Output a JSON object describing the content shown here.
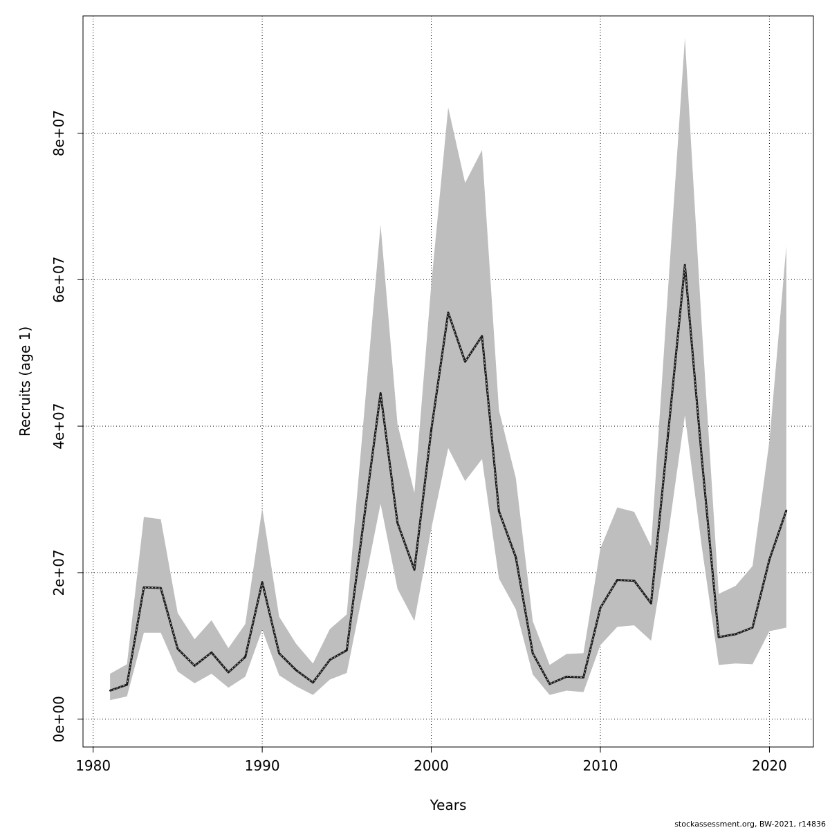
{
  "chart_data": {
    "type": "line",
    "title": "",
    "xlabel": "Years",
    "ylabel": "Recruits (age 1)",
    "xlim": [
      1979.4,
      2022.6
    ],
    "ylim": [
      -3800000.0,
      96000000.0
    ],
    "grid": true,
    "x_ticks": [
      1980,
      1990,
      2000,
      2010,
      2020
    ],
    "x_tick_labels": [
      "1980",
      "1990",
      "2000",
      "2010",
      "2020"
    ],
    "y_ticks": [
      0,
      20000000,
      40000000,
      60000000,
      80000000
    ],
    "y_tick_labels": [
      "0e+00",
      "2e+07",
      "4e+07",
      "6e+07",
      "8e+07"
    ],
    "x": [
      1981,
      1982,
      1983,
      1984,
      1985,
      1986,
      1987,
      1988,
      1989,
      1990,
      1991,
      1992,
      1993,
      1994,
      1995,
      1996,
      1997,
      1998,
      1999,
      2000,
      2001,
      2002,
      2003,
      2004,
      2005,
      2006,
      2007,
      2008,
      2009,
      2010,
      2011,
      2012,
      2013,
      2014,
      2015,
      2016,
      2017,
      2018,
      2019,
      2020,
      2021
    ],
    "series": [
      {
        "values": [
          3900000,
          4700000,
          18000000,
          17900000,
          9600000,
          7300000,
          9100000,
          6400000,
          8500000,
          18700000,
          9000000,
          6700000,
          5000000,
          8100000,
          9400000,
          27000000,
          44500000,
          26800000,
          20400000,
          39500000,
          55500000,
          48800000,
          52300000,
          28400000,
          22100000,
          9000000,
          4800000,
          5800000,
          5700000,
          15200000,
          19000000,
          18900000,
          15800000,
          38800000,
          62000000,
          35600000,
          11200000,
          11600000,
          12500000,
          21800000,
          28500000
        ]
      }
    ],
    "band": {
      "lower": [
        2600000,
        3100000,
        11800000,
        11800000,
        6500000,
        4900000,
        6200000,
        4300000,
        5800000,
        12200000,
        6000000,
        4500000,
        3300000,
        5400000,
        6300000,
        17800000,
        29400000,
        17800000,
        13400000,
        26000000,
        37000000,
        32500000,
        35500000,
        19200000,
        15000000,
        6100000,
        3300000,
        3900000,
        3700000,
        10100000,
        12600000,
        12800000,
        10700000,
        25000000,
        41500000,
        23500000,
        7400000,
        7600000,
        7500000,
        12000000,
        12500000
      ],
      "upper": [
        6200000,
        7500000,
        27600000,
        27300000,
        14500000,
        10900000,
        13500000,
        9700000,
        13000000,
        28800000,
        14000000,
        10300000,
        7600000,
        12300000,
        14300000,
        41000000,
        67500000,
        40300000,
        30900000,
        59400000,
        83500000,
        73200000,
        77700000,
        42200000,
        32900000,
        13400000,
        7400000,
        8900000,
        9000000,
        23300000,
        28900000,
        28300000,
        23600000,
        58600000,
        93000000,
        53600000,
        17100000,
        18200000,
        20900000,
        38000000,
        64600000
      ]
    },
    "colors": {
      "band": "#bebebe",
      "line": "#1a1a1a",
      "grid": "#000000"
    }
  },
  "footer": {
    "note": "stockassessment.org, BW-2021, r14836"
  }
}
